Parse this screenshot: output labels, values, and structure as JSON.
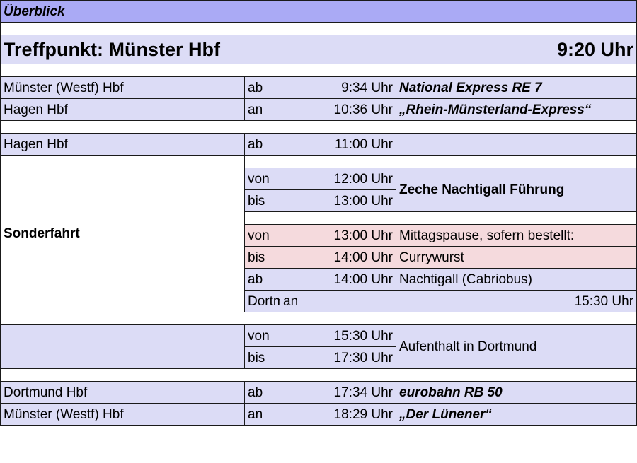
{
  "header": {
    "title": "Überblick"
  },
  "meeting": {
    "label": "Treffpunkt: Münster Hbf",
    "time": "9:20 Uhr"
  },
  "legs": {
    "outbound": [
      {
        "station": "Münster (Westf) Hbf",
        "type": "ab",
        "time": "9:34 Uhr",
        "note": "National Express RE 7"
      },
      {
        "station": "Hagen Hbf",
        "type": "an",
        "time": "10:36 Uhr",
        "note": "„Rhein-Münsterland-Express“"
      }
    ],
    "hagen_departure": {
      "station": "Hagen Hbf",
      "type": "ab",
      "time": "11:00 Uhr"
    },
    "special": {
      "label": "Sonderfahrt",
      "tour": {
        "from_type": "von",
        "from_time": "12:00 Uhr",
        "to_type": "bis",
        "to_time": "13:00 Uhr",
        "note": "Zeche Nachtigall Führung"
      },
      "lunch": {
        "from_type": "von",
        "from_time": "13:00 Uhr",
        "from_note": "Mittagspause, sofern bestellt:",
        "to_type": "bis",
        "to_time": "14:00 Uhr",
        "to_note": "Currywurst"
      },
      "bus": {
        "type": "ab",
        "time": "14:00 Uhr",
        "note": "Nachtigall (Cabriobus)"
      }
    },
    "dortmund_arrival": {
      "station": "Dortmund Hbf",
      "type": "an",
      "time": "15:30 Uhr"
    },
    "stay": {
      "from_type": "von",
      "from_time": "15:30 Uhr",
      "to_type": "bis",
      "to_time": "17:30 Uhr",
      "note": "Aufenthalt in Dortmund"
    },
    "return": [
      {
        "station": "Dortmund Hbf",
        "type": "ab",
        "time": "17:34 Uhr",
        "note": "eurobahn RB 50"
      },
      {
        "station": "Münster (Westf) Hbf",
        "type": "an",
        "time": "18:29 Uhr",
        "note": "„Der Lünener“"
      }
    ]
  },
  "colors": {
    "header": "#aaaaf5",
    "row": "#dcdcf6",
    "lunch": "#f5dadd"
  }
}
